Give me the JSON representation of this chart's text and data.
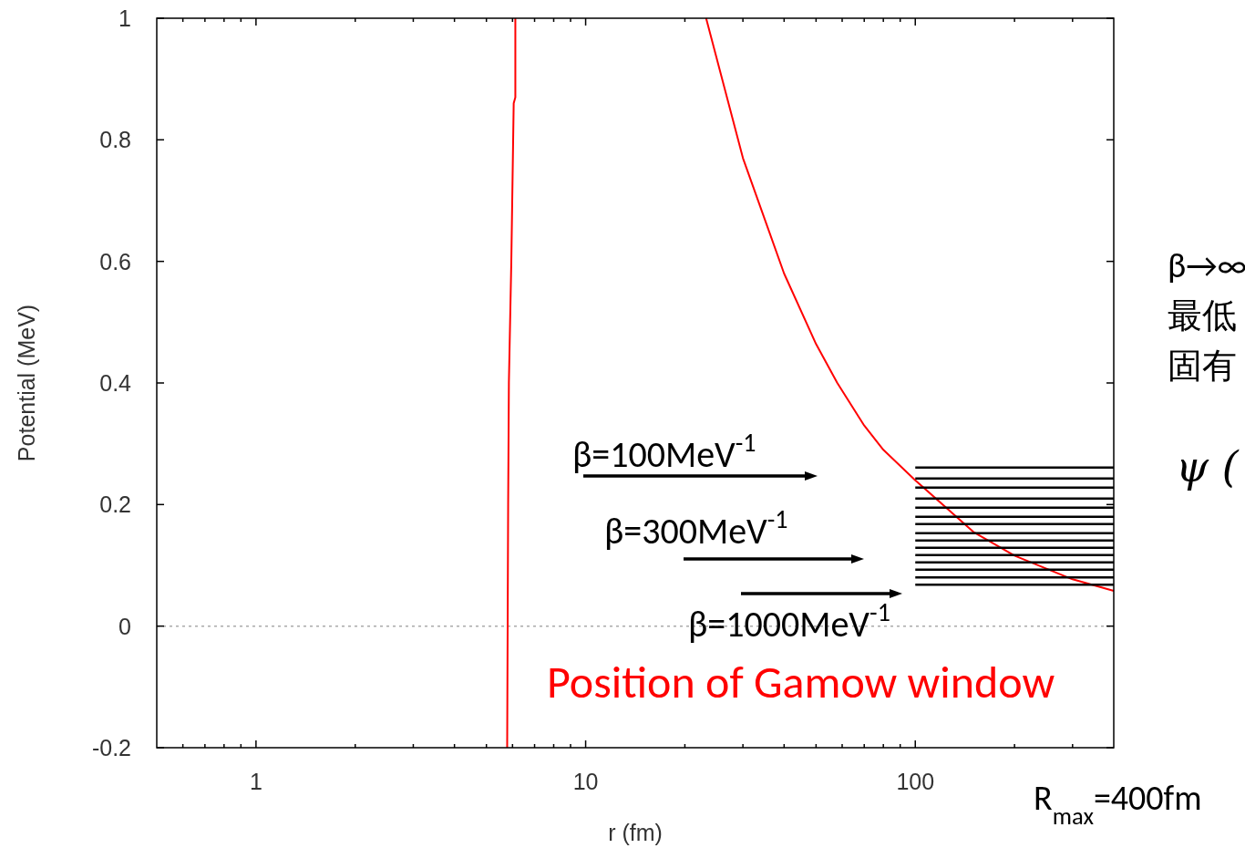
{
  "chart_data": {
    "type": "line",
    "xlabel": "r (fm)",
    "ylabel": "Potential (MeV)",
    "log": "x",
    "xlim": [
      0.5,
      400
    ],
    "xticks": [
      1,
      10,
      100
    ],
    "ylim": [
      -0.2,
      1
    ],
    "yticks": [
      -0.2,
      0,
      0.2,
      0.4,
      0.6,
      0.8,
      1
    ],
    "grid": false,
    "line_style": "solid",
    "marker": "none",
    "ref_lines": [
      {
        "axis": "y",
        "value": 0,
        "color": "#aaaaaa",
        "line_style": "dotted"
      }
    ],
    "series": [
      {
        "color": "#ff0000",
        "x": [
          5.78,
          5.82,
          5.85,
          5.95,
          6.05,
          6.12,
          6.12
        ],
        "values": [
          -0.2,
          0.2,
          0.4,
          0.6,
          0.86,
          0.87,
          1
        ]
      },
      {
        "color": "#ff0000",
        "x": [
          23.2,
          30,
          40,
          50,
          58,
          70,
          80,
          100,
          150,
          200,
          300,
          400
        ],
        "values": [
          1,
          0.77,
          0.58,
          0.464,
          0.4,
          0.33,
          0.29,
          0.24,
          0.155,
          0.116,
          0.077,
          0.058
        ]
      },
      {
        "color": "#000000",
        "x": [
          100,
          400
        ],
        "values": [
          0.261,
          0.261
        ]
      },
      {
        "color": "#000000",
        "x": [
          100,
          400
        ],
        "values": [
          0.243,
          0.243
        ]
      },
      {
        "color": "#000000",
        "x": [
          100,
          400
        ],
        "values": [
          0.228,
          0.228
        ]
      },
      {
        "color": "#000000",
        "x": [
          100,
          400
        ],
        "values": [
          0.21,
          0.21
        ]
      },
      {
        "color": "#000000",
        "x": [
          100,
          400
        ],
        "values": [
          0.195,
          0.195
        ]
      },
      {
        "color": "#000000",
        "x": [
          100,
          400
        ],
        "values": [
          0.18,
          0.18
        ]
      },
      {
        "color": "#000000",
        "x": [
          100,
          400
        ],
        "values": [
          0.168,
          0.168
        ]
      },
      {
        "color": "#000000",
        "x": [
          100,
          400
        ],
        "values": [
          0.153,
          0.153
        ]
      },
      {
        "color": "#000000",
        "x": [
          100,
          400
        ],
        "values": [
          0.141,
          0.141
        ]
      },
      {
        "color": "#000000",
        "x": [
          100,
          400
        ],
        "values": [
          0.129,
          0.129
        ]
      },
      {
        "color": "#000000",
        "x": [
          100,
          400
        ],
        "values": [
          0.117,
          0.117
        ]
      },
      {
        "color": "#000000",
        "x": [
          100,
          400
        ],
        "values": [
          0.105,
          0.105
        ]
      },
      {
        "color": "#000000",
        "x": [
          100,
          400
        ],
        "values": [
          0.093,
          0.093
        ]
      },
      {
        "color": "#000000",
        "x": [
          100,
          400
        ],
        "values": [
          0.08,
          0.08
        ]
      },
      {
        "color": "#000000",
        "x": [
          100,
          400
        ],
        "values": [
          0.068,
          0.068
        ]
      }
    ],
    "annotations": [
      "β=100MeV$^{-1}$",
      "β=300MeV$^{-1}$",
      "β=1000MeV$^{-1}$",
      "Position of Gamow window",
      "R$_{max}$=400fm",
      "β→∞",
      "最低",
      "固有",
      "ψ ("
    ]
  }
}
